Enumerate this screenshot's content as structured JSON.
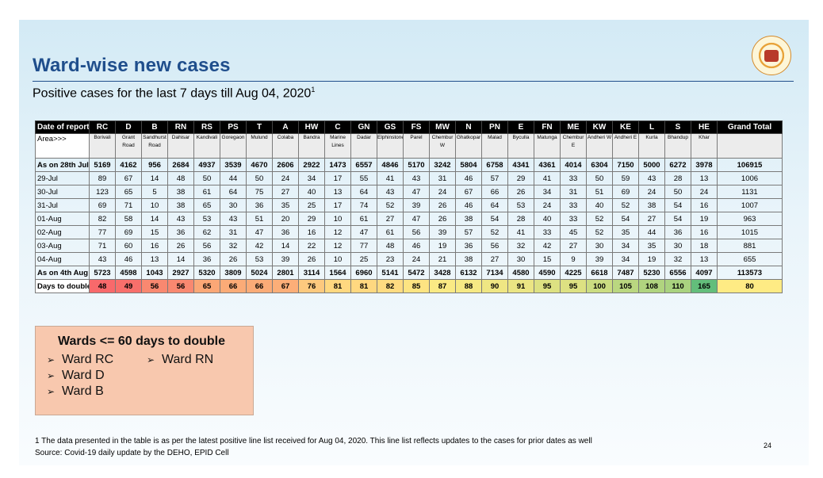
{
  "slide": {
    "title": "Ward-wise new cases",
    "subtitle": "Positive cases for the last 7 days till Aug 04, 2020",
    "subtitle_sup": "1",
    "logo_icon": "municipal-seal-icon"
  },
  "table": {
    "header_label": "Date of report",
    "area_label": "Area>>>",
    "grand_total_label": "Grand Total",
    "wards": [
      "RC",
      "D",
      "B",
      "RN",
      "RS",
      "PS",
      "T",
      "A",
      "HW",
      "C",
      "GN",
      "GS",
      "FS",
      "MW",
      "N",
      "PN",
      "E",
      "FN",
      "ME",
      "KW",
      "KE",
      "L",
      "S",
      "HE"
    ],
    "areas": [
      "Borivali",
      "Grant Road",
      "Sandhurst Road",
      "Dahisar",
      "Kandivali",
      "Goregaon",
      "Mulund",
      "Colaba",
      "Bandra",
      "Marine Lines",
      "Dadar",
      "Elphinstone",
      "Parel",
      "Chembur W",
      "Ghatkopar",
      "Malad",
      "Byculla",
      "Matunga",
      "Chembur E",
      "Andheri W",
      "Andheri E",
      "Kurla",
      "Bhandup",
      "Khar"
    ],
    "rows": [
      {
        "label": "As on 28th July",
        "bold": true,
        "values": [
          "5169",
          "4162",
          "956",
          "2684",
          "4937",
          "3539",
          "4670",
          "2606",
          "2922",
          "1473",
          "6557",
          "4846",
          "5170",
          "3242",
          "5804",
          "6758",
          "4341",
          "4361",
          "4014",
          "6304",
          "7150",
          "5000",
          "6272",
          "3978"
        ],
        "total": "106915"
      },
      {
        "label": "29-Jul",
        "bold": false,
        "values": [
          "89",
          "67",
          "14",
          "48",
          "50",
          "44",
          "50",
          "24",
          "34",
          "17",
          "55",
          "41",
          "43",
          "31",
          "46",
          "57",
          "29",
          "41",
          "33",
          "50",
          "59",
          "43",
          "28",
          "13"
        ],
        "total": "1006"
      },
      {
        "label": "30-Jul",
        "bold": false,
        "values": [
          "123",
          "65",
          "5",
          "38",
          "61",
          "64",
          "75",
          "27",
          "40",
          "13",
          "64",
          "43",
          "47",
          "24",
          "67",
          "66",
          "26",
          "34",
          "31",
          "51",
          "69",
          "24",
          "50",
          "24"
        ],
        "total": "1131"
      },
      {
        "label": "31-Jul",
        "bold": false,
        "values": [
          "69",
          "71",
          "10",
          "38",
          "65",
          "30",
          "36",
          "35",
          "25",
          "17",
          "74",
          "52",
          "39",
          "26",
          "46",
          "64",
          "53",
          "24",
          "33",
          "40",
          "52",
          "38",
          "54",
          "16"
        ],
        "total": "1007"
      },
      {
        "label": "01-Aug",
        "bold": false,
        "values": [
          "82",
          "58",
          "14",
          "43",
          "53",
          "43",
          "51",
          "20",
          "29",
          "10",
          "61",
          "27",
          "47",
          "26",
          "38",
          "54",
          "28",
          "40",
          "33",
          "52",
          "54",
          "27",
          "54",
          "19"
        ],
        "total": "963"
      },
      {
        "label": "02-Aug",
        "bold": false,
        "values": [
          "77",
          "69",
          "15",
          "36",
          "62",
          "31",
          "47",
          "36",
          "16",
          "12",
          "47",
          "61",
          "56",
          "39",
          "57",
          "52",
          "41",
          "33",
          "45",
          "52",
          "35",
          "44",
          "36",
          "16"
        ],
        "total": "1015"
      },
      {
        "label": "03-Aug",
        "bold": false,
        "values": [
          "71",
          "60",
          "16",
          "26",
          "56",
          "32",
          "42",
          "14",
          "22",
          "12",
          "77",
          "48",
          "46",
          "19",
          "36",
          "56",
          "32",
          "42",
          "27",
          "30",
          "34",
          "35",
          "30",
          "18"
        ],
        "total": "881"
      },
      {
        "label": "04-Aug",
        "bold": false,
        "values": [
          "43",
          "46",
          "13",
          "14",
          "36",
          "26",
          "53",
          "39",
          "26",
          "10",
          "25",
          "23",
          "24",
          "21",
          "38",
          "27",
          "30",
          "15",
          "9",
          "39",
          "34",
          "19",
          "32",
          "13"
        ],
        "total": "655"
      },
      {
        "label": "As on 4th Aug",
        "bold": true,
        "values": [
          "5723",
          "4598",
          "1043",
          "2927",
          "5320",
          "3809",
          "5024",
          "2801",
          "3114",
          "1564",
          "6960",
          "5141",
          "5472",
          "3428",
          "6132",
          "7134",
          "4580",
          "4590",
          "4225",
          "6618",
          "7487",
          "5230",
          "6556",
          "4097"
        ],
        "total": "113573"
      }
    ],
    "doubling": {
      "label": "Days to double",
      "values": [
        "48",
        "49",
        "56",
        "56",
        "65",
        "66",
        "66",
        "67",
        "76",
        "81",
        "81",
        "82",
        "85",
        "87",
        "88",
        "90",
        "91",
        "95",
        "95",
        "100",
        "105",
        "108",
        "110",
        "165"
      ],
      "total": "80",
      "colors": [
        "#f8696b",
        "#f86f6b",
        "#f98870",
        "#f98870",
        "#fba776",
        "#fbab77",
        "#fbab77",
        "#fcae78",
        "#fdc97e",
        "#ffd880",
        "#ffd880",
        "#ffdb81",
        "#fde482",
        "#faea84",
        "#f6e984",
        "#efe683",
        "#ebe583",
        "#dde182",
        "#dde182",
        "#cbdc81",
        "#bad780",
        "#b0d47f",
        "#a9d27f",
        "#63be7b"
      ],
      "total_color": "#feeb84"
    }
  },
  "callout": {
    "title": "Wards <= 60 days to double",
    "items": [
      "Ward RC",
      "Ward D",
      "Ward B",
      "Ward RN"
    ],
    "bullet_icon": "arrow-bullet-icon"
  },
  "footer": {
    "footnote": "1 The data presented in the table is as per the latest positive line list received for Aug 04, 2020. This line list reflects updates to the cases for prior dates as well",
    "source": "Source: Covid-19 daily update by the DEHO, EPID Cell",
    "page_number": "24"
  }
}
